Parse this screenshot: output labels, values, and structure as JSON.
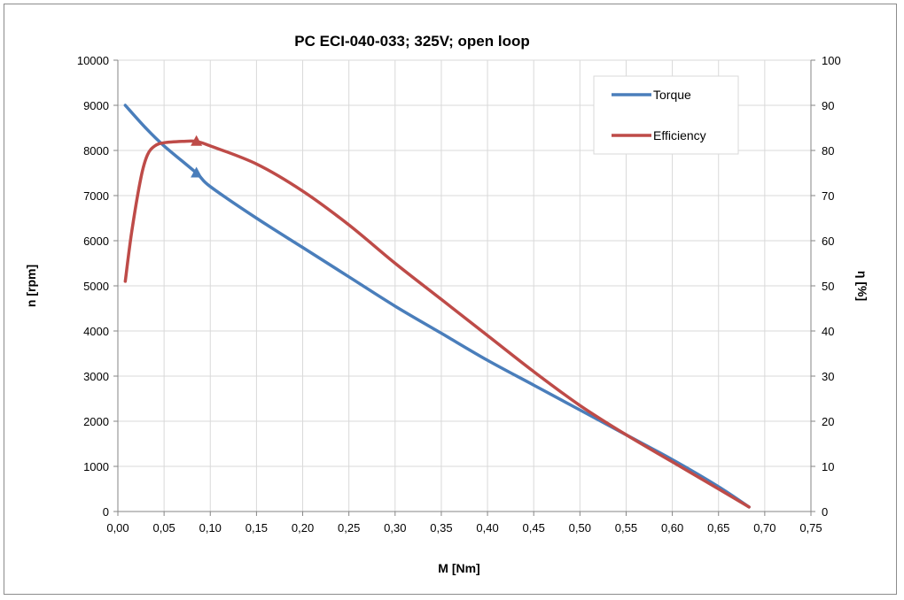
{
  "chart_data": {
    "type": "line",
    "title": "PC ECI-040-033; 325V; open loop",
    "xlabel": "M [Nm]",
    "ylabel": "n [rpm]",
    "y2label": "η [%]",
    "xlim": [
      0,
      0.75
    ],
    "ylim": [
      0,
      10000
    ],
    "y2lim": [
      0,
      100
    ],
    "x_ticks": [
      "0,00",
      "0,05",
      "0,10",
      "0,15",
      "0,20",
      "0,25",
      "0,30",
      "0,35",
      "0,40",
      "0,45",
      "0,50",
      "0,55",
      "0,60",
      "0,65",
      "0,70",
      "0,75"
    ],
    "y_ticks": [
      "0",
      "1000",
      "2000",
      "3000",
      "4000",
      "5000",
      "6000",
      "7000",
      "8000",
      "9000",
      "10000"
    ],
    "y2_ticks": [
      "0",
      "10",
      "20",
      "30",
      "40",
      "50",
      "60",
      "70",
      "80",
      "90",
      "100"
    ],
    "grid": true,
    "legend_position": "top-right",
    "series": [
      {
        "name": "Torque",
        "axis": "left",
        "color": "#4a7ebb",
        "marker": "triangle",
        "marker_point": [
          0.085,
          7500
        ],
        "points": [
          [
            0.008,
            9000
          ],
          [
            0.03,
            8500
          ],
          [
            0.05,
            8100
          ],
          [
            0.085,
            7500
          ],
          [
            0.1,
            7200
          ],
          [
            0.15,
            6500
          ],
          [
            0.2,
            5850
          ],
          [
            0.25,
            5200
          ],
          [
            0.3,
            4550
          ],
          [
            0.35,
            3950
          ],
          [
            0.4,
            3350
          ],
          [
            0.45,
            2800
          ],
          [
            0.5,
            2250
          ],
          [
            0.55,
            1700
          ],
          [
            0.6,
            1150
          ],
          [
            0.65,
            550
          ],
          [
            0.683,
            100
          ]
        ]
      },
      {
        "name": "Efficiency",
        "axis": "right",
        "color": "#be4b48",
        "marker": "triangle",
        "marker_point": [
          0.085,
          82
        ],
        "points": [
          [
            0.008,
            51
          ],
          [
            0.015,
            62
          ],
          [
            0.025,
            74
          ],
          [
            0.032,
            79
          ],
          [
            0.04,
            81
          ],
          [
            0.05,
            81.7
          ],
          [
            0.07,
            82
          ],
          [
            0.085,
            82
          ],
          [
            0.1,
            81
          ],
          [
            0.15,
            77
          ],
          [
            0.2,
            71
          ],
          [
            0.25,
            63.5
          ],
          [
            0.3,
            55
          ],
          [
            0.35,
            47
          ],
          [
            0.4,
            39
          ],
          [
            0.45,
            31
          ],
          [
            0.5,
            23.5
          ],
          [
            0.55,
            17
          ],
          [
            0.6,
            11
          ],
          [
            0.65,
            5
          ],
          [
            0.683,
            1
          ]
        ]
      }
    ]
  }
}
